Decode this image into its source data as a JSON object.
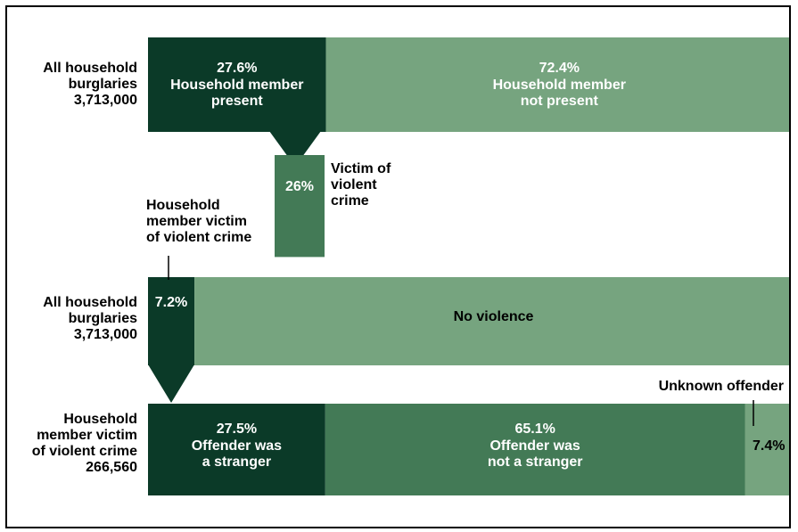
{
  "colors": {
    "dark": "#0b3a28",
    "mid": "#437a56",
    "light": "#76a47f",
    "text_light": "#ffffff",
    "text_dark": "#000000"
  },
  "chart_data": {
    "type": "bar",
    "charts": [
      {
        "id": "presence",
        "row_label": [
          "All household",
          "burglaries",
          "3,713,000"
        ],
        "segments": [
          {
            "value": 27.6,
            "pct_label": "27.6%",
            "label_lines": [
              "Household member",
              "present"
            ],
            "color": "dark"
          },
          {
            "value": 72.4,
            "pct_label": "72.4%",
            "label_lines": [
              "Household member",
              "not present"
            ],
            "color": "light"
          }
        ]
      },
      {
        "id": "victim",
        "from_segment": "Household member present",
        "segments": [
          {
            "value": 26,
            "pct_label": "26%",
            "label_lines": [
              "Victim of",
              "violent",
              "crime"
            ],
            "color": "mid"
          }
        ]
      },
      {
        "id": "violence",
        "row_label": [
          "All household",
          "burglaries",
          "3,713,000"
        ],
        "segments": [
          {
            "value": 7.2,
            "pct_label": "7.2%",
            "label_lines": [
              "Household",
              "member victim",
              "of violent crime"
            ],
            "color": "dark"
          },
          {
            "value": 92.8,
            "pct_label": "",
            "label_lines": [
              "No violence"
            ],
            "color": "light"
          }
        ]
      },
      {
        "id": "offender",
        "row_label": [
          "Household",
          "member victim",
          "of violent crime",
          "266,560"
        ],
        "segments": [
          {
            "value": 27.5,
            "pct_label": "27.5%",
            "label_lines": [
              "Offender was",
              "a stranger"
            ],
            "color": "dark"
          },
          {
            "value": 65.1,
            "pct_label": "65.1%",
            "label_lines": [
              "Offender was",
              "not a stranger"
            ],
            "color": "mid"
          },
          {
            "value": 7.4,
            "pct_label": "7.4%",
            "label_lines": [
              "Unknown offender"
            ],
            "color": "light"
          }
        ]
      }
    ]
  }
}
